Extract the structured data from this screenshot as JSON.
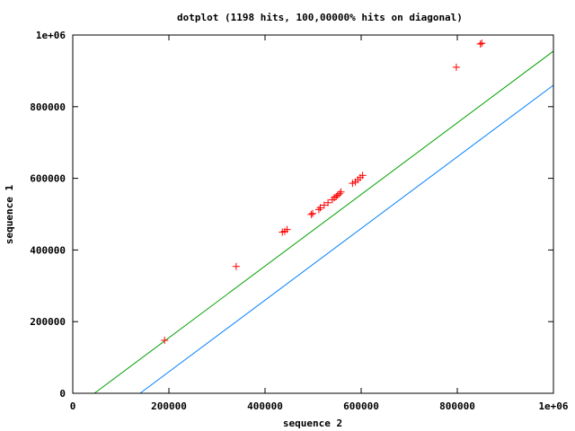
{
  "chart_data": {
    "type": "scatter",
    "title": "dotplot (1198 hits, 100,00000% hits on diagonal)",
    "xlabel": "sequence 2",
    "ylabel": "sequence 1",
    "xlim": [
      0,
      1000000
    ],
    "ylim": [
      0,
      1000000
    ],
    "xticks": [
      0,
      200000,
      400000,
      600000,
      800000,
      1000000
    ],
    "yticks": [
      0,
      200000,
      400000,
      600000,
      800000,
      1000000
    ],
    "xtick_labels": [
      "0",
      "200000",
      "400000",
      "600000",
      "800000",
      "1e+06"
    ],
    "ytick_labels": [
      "0",
      "200000",
      "400000",
      "600000",
      "800000",
      "1e+06"
    ],
    "grid": false,
    "series": [
      {
        "marker": "+",
        "color": "#ff0000",
        "points": [
          [
            191000,
            148000
          ],
          [
            340000,
            354000
          ],
          [
            436000,
            450000
          ],
          [
            441000,
            452000
          ],
          [
            446000,
            457000
          ],
          [
            496000,
            499000
          ],
          [
            499000,
            502000
          ],
          [
            512000,
            513000
          ],
          [
            515000,
            518000
          ],
          [
            523000,
            525000
          ],
          [
            531000,
            532000
          ],
          [
            540000,
            540000
          ],
          [
            544000,
            546000
          ],
          [
            548000,
            549000
          ],
          [
            551000,
            553000
          ],
          [
            555000,
            557000
          ],
          [
            558000,
            562000
          ],
          [
            582000,
            586000
          ],
          [
            588000,
            590000
          ],
          [
            593000,
            596000
          ],
          [
            598000,
            602000
          ],
          [
            603000,
            608000
          ],
          [
            798000,
            910000
          ],
          [
            848000,
            975000
          ],
          [
            851000,
            977000
          ]
        ]
      },
      {
        "type": "line",
        "color": "#00a000",
        "x": [
          45000,
          1045000
        ],
        "y": [
          0,
          1000000
        ]
      },
      {
        "type": "line",
        "color": "#0080ff",
        "x": [
          140000,
          1140000
        ],
        "y": [
          0,
          1000000
        ]
      }
    ]
  }
}
